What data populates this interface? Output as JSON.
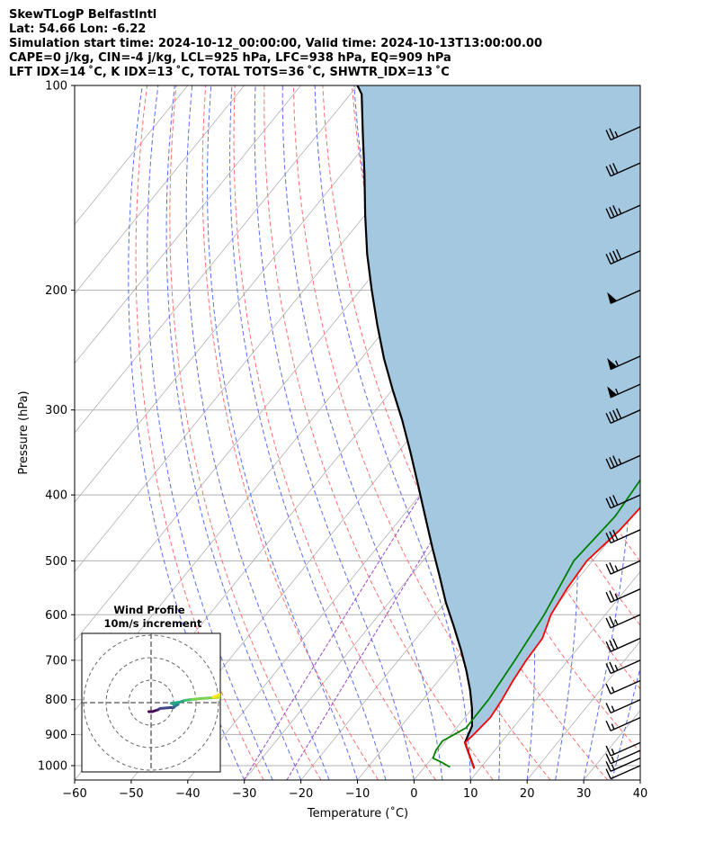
{
  "header": {
    "line1": "SkewTLogP BelfastIntl",
    "line2": "Lat: 54.66   Lon: -6.22",
    "line3": "Simulation start time: 2024-10-12_00:00:00, Valid time: 2024-10-13T13:00:00.00",
    "line4": "CAPE=0 j/kg, CIN=-4 j/kg, LCL=925 hPa, LFC=938 hPa, EQ=909 hPa",
    "line5": "LFT IDX=14 ˚C, K IDX=13 ˚C, TOTAL TOTS=36 ˚C, SHWTR_IDX=13 ˚C"
  },
  "chart_data": {
    "type": "skewt",
    "xlabel": "Temperature (˚C)",
    "ylabel": "Pressure (hPa)",
    "xlim": [
      -60,
      40
    ],
    "ylim": [
      1050,
      100
    ],
    "xticks": [
      "−60",
      "−50",
      "−40",
      "−30",
      "−20",
      "−10",
      "0",
      "10",
      "20",
      "30",
      "40"
    ],
    "xtick_values": [
      -60,
      -50,
      -40,
      -30,
      -20,
      -10,
      0,
      10,
      20,
      30,
      40
    ],
    "yticks": [
      "100",
      "200",
      "300",
      "400",
      "500",
      "600",
      "700",
      "800",
      "900",
      "1000"
    ],
    "ytick_values": [
      100,
      200,
      300,
      400,
      500,
      600,
      700,
      800,
      900,
      1000
    ],
    "temperature": {
      "name": "Temperature",
      "color": "#ff0000",
      "points": [
        [
          9,
          1010
        ],
        [
          3.6,
          925
        ],
        [
          4,
          900
        ],
        [
          4.5,
          850
        ],
        [
          4,
          800
        ],
        [
          3.2,
          750
        ],
        [
          2.6,
          700
        ],
        [
          2.3,
          650
        ],
        [
          0.4,
          600
        ],
        [
          -0.5,
          550
        ],
        [
          -1,
          500
        ],
        [
          0.4,
          450
        ],
        [
          1,
          400
        ],
        [
          -0.8,
          360
        ],
        [
          -1.2,
          320
        ],
        [
          -0.3,
          300
        ],
        [
          0.4,
          250
        ],
        [
          0.8,
          230
        ],
        [
          1,
          200
        ],
        [
          2.5,
          180
        ],
        [
          7.3,
          150
        ],
        [
          11.2,
          120
        ],
        [
          13.3,
          100
        ]
      ]
    },
    "dewpoint": {
      "name": "Dewpoint",
      "color": "#008000",
      "points": [
        [
          4.5,
          1005
        ],
        [
          3.8,
          1000
        ],
        [
          2.5,
          990
        ],
        [
          0.2,
          975
        ],
        [
          -0.4,
          950
        ],
        [
          -0.6,
          920
        ],
        [
          1.7,
          880
        ],
        [
          1.6,
          800
        ],
        [
          0.6,
          700
        ],
        [
          -0.8,
          600
        ],
        [
          -3.3,
          500
        ],
        [
          -2.4,
          430
        ],
        [
          -3.2,
          380
        ],
        [
          -4.2,
          320
        ],
        [
          -6,
          275
        ],
        [
          -8.5,
          232
        ],
        [
          -9.8,
          210
        ],
        [
          -12,
          200
        ],
        [
          -18.8,
          185
        ],
        [
          -25.5,
          170
        ],
        [
          -23.6,
          140
        ],
        [
          -20,
          120
        ],
        [
          -15,
          100
        ]
      ]
    },
    "parcel": {
      "name": "Parcel",
      "color": "#000000",
      "points": [
        [
          9,
          1010
        ],
        [
          3.6,
          925
        ],
        [
          2.5,
          875
        ],
        [
          0,
          825
        ],
        [
          -3,
          775
        ],
        [
          -6.5,
          725
        ],
        [
          -10.5,
          675
        ],
        [
          -15,
          625
        ],
        [
          -20,
          575
        ],
        [
          -25,
          525
        ],
        [
          -30,
          480
        ],
        [
          -36,
          430
        ],
        [
          -42,
          385
        ],
        [
          -48,
          345
        ],
        [
          -54,
          310
        ],
        [
          -60,
          280
        ],
        [
          -66,
          252
        ],
        [
          -72,
          225
        ],
        [
          -78,
          200
        ],
        [
          -84,
          177
        ],
        [
          -90,
          155
        ],
        [
          -96,
          135
        ],
        [
          -102,
          118
        ],
        [
          -108,
          103
        ],
        [
          -110,
          100
        ]
      ]
    },
    "cape_shading": {
      "color": "#a3c8e0",
      "label": "CAPE/CIN"
    },
    "wind_barbs": [
      {
        "p": 1000,
        "speed_kt": 12
      },
      {
        "p": 975,
        "speed_kt": 14
      },
      {
        "p": 950,
        "speed_kt": 15
      },
      {
        "p": 925,
        "speed_kt": 15
      },
      {
        "p": 850,
        "speed_kt": 15
      },
      {
        "p": 800,
        "speed_kt": 15
      },
      {
        "p": 750,
        "speed_kt": 15
      },
      {
        "p": 700,
        "speed_kt": 25
      },
      {
        "p": 650,
        "speed_kt": 30
      },
      {
        "p": 600,
        "speed_kt": 25
      },
      {
        "p": 550,
        "speed_kt": 25
      },
      {
        "p": 500,
        "speed_kt": 25
      },
      {
        "p": 450,
        "speed_kt": 30
      },
      {
        "p": 400,
        "speed_kt": 30
      },
      {
        "p": 350,
        "speed_kt": 35
      },
      {
        "p": 300,
        "speed_kt": 40
      },
      {
        "p": 275,
        "speed_kt": 55
      },
      {
        "p": 250,
        "speed_kt": 55
      },
      {
        "p": 200,
        "speed_kt": 50
      },
      {
        "p": 175,
        "speed_kt": 40
      },
      {
        "p": 150,
        "speed_kt": 35
      },
      {
        "p": 130,
        "speed_kt": 30
      },
      {
        "p": 115,
        "speed_kt": 25
      }
    ],
    "hodograph": {
      "title": "Wind Profile",
      "subtitle": "10m/s increment",
      "rings_ms": [
        10,
        20,
        30
      ],
      "points_uv": [
        [
          -1,
          -4
        ],
        [
          0.5,
          -4
        ],
        [
          3,
          -3.2
        ],
        [
          4,
          -2.6
        ],
        [
          8.5,
          -2.2
        ],
        [
          10,
          -2.2
        ],
        [
          11,
          -1.3
        ],
        [
          12,
          -0.8
        ],
        [
          10.5,
          -0.8
        ],
        [
          9,
          -0.3
        ],
        [
          12.5,
          0.2
        ],
        [
          15,
          1
        ],
        [
          18,
          1.4
        ],
        [
          22,
          1.8
        ],
        [
          28,
          2.2
        ],
        [
          35,
          2.6
        ],
        [
          40,
          3
        ]
      ]
    }
  }
}
